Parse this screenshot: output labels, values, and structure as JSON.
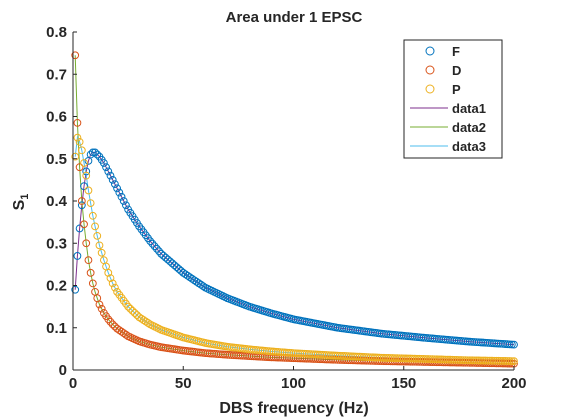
{
  "chart_data": {
    "type": "line",
    "title": "Area under 1 EPSC",
    "xlabel": "DBS frequency (Hz)",
    "ylabel": "S",
    "ylabel_subscript": "1",
    "xlim": [
      0,
      200
    ],
    "ylim": [
      0,
      0.8
    ],
    "x_ticks": [
      0,
      50,
      100,
      150,
      200
    ],
    "y_ticks": [
      0,
      0.1,
      0.2,
      0.3,
      0.4,
      0.5,
      0.6,
      0.7,
      0.8
    ],
    "legend_position": "top-right",
    "x_samples": [
      1,
      2,
      3,
      4,
      5,
      6,
      7,
      8,
      9,
      10,
      12,
      14,
      16,
      18,
      20,
      25,
      30,
      35,
      40,
      50,
      60,
      70,
      80,
      90,
      100,
      120,
      140,
      160,
      180,
      200
    ],
    "series": [
      {
        "name": "F",
        "marker": "circle",
        "color": "#0072BD",
        "y": [
          0.19,
          0.27,
          0.335,
          0.39,
          0.435,
          0.47,
          0.495,
          0.51,
          0.515,
          0.515,
          0.505,
          0.49,
          0.47,
          0.45,
          0.43,
          0.38,
          0.34,
          0.305,
          0.275,
          0.23,
          0.195,
          0.17,
          0.15,
          0.134,
          0.12,
          0.1,
          0.086,
          0.076,
          0.067,
          0.06
        ]
      },
      {
        "name": "D",
        "marker": "circle",
        "color": "#D95319",
        "y": [
          0.745,
          0.585,
          0.48,
          0.4,
          0.345,
          0.3,
          0.26,
          0.23,
          0.205,
          0.185,
          0.155,
          0.135,
          0.12,
          0.108,
          0.098,
          0.08,
          0.068,
          0.06,
          0.054,
          0.046,
          0.04,
          0.036,
          0.033,
          0.03,
          0.028,
          0.024,
          0.021,
          0.019,
          0.017,
          0.015
        ]
      },
      {
        "name": "P",
        "marker": "circle",
        "color": "#EDB120",
        "y": [
          0.505,
          0.55,
          0.54,
          0.52,
          0.49,
          0.46,
          0.425,
          0.395,
          0.365,
          0.34,
          0.295,
          0.26,
          0.23,
          0.205,
          0.185,
          0.15,
          0.125,
          0.108,
          0.095,
          0.077,
          0.064,
          0.055,
          0.049,
          0.044,
          0.04,
          0.034,
          0.029,
          0.026,
          0.023,
          0.021
        ]
      },
      {
        "name": "data1",
        "marker": "line",
        "color": "#7E2F8E",
        "y": [
          0.19,
          0.27,
          0.335,
          0.39,
          0.435,
          0.47,
          0.495,
          0.51,
          0.515,
          0.515,
          0.505,
          0.49,
          0.47,
          0.45,
          0.43,
          0.38,
          0.34,
          0.305,
          0.275,
          0.23,
          0.195,
          0.17,
          0.15,
          0.134,
          0.12,
          0.1,
          0.086,
          0.076,
          0.067,
          0.06
        ]
      },
      {
        "name": "data2",
        "marker": "line",
        "color": "#77AC30",
        "y": [
          0.745,
          0.585,
          0.48,
          0.4,
          0.345,
          0.3,
          0.26,
          0.23,
          0.205,
          0.185,
          0.155,
          0.135,
          0.12,
          0.108,
          0.098,
          0.08,
          0.068,
          0.06,
          0.054,
          0.046,
          0.04,
          0.036,
          0.033,
          0.03,
          0.028,
          0.024,
          0.021,
          0.019,
          0.017,
          0.015
        ]
      },
      {
        "name": "data3",
        "marker": "line",
        "color": "#4DBEEE",
        "y": [
          0.505,
          0.55,
          0.54,
          0.52,
          0.49,
          0.46,
          0.425,
          0.395,
          0.365,
          0.34,
          0.295,
          0.26,
          0.23,
          0.205,
          0.185,
          0.15,
          0.125,
          0.108,
          0.095,
          0.077,
          0.064,
          0.055,
          0.049,
          0.044,
          0.04,
          0.034,
          0.029,
          0.026,
          0.023,
          0.021
        ]
      }
    ]
  }
}
